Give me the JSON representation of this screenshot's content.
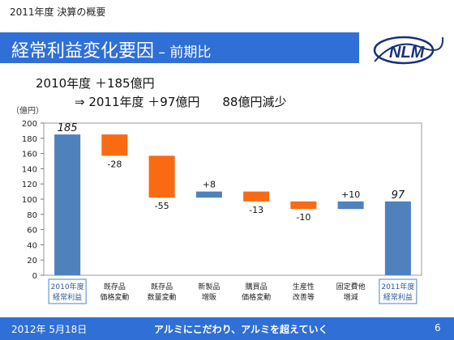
{
  "header": {
    "caption": "2011年度 決算の概要",
    "title": "経常利益変化要因",
    "subtitle": " – 前期比"
  },
  "logo": {
    "text": "NLM"
  },
  "summary": {
    "line1": "2010年度 ＋185億円",
    "line2": "⇒ 2011年度 ＋97億円",
    "line2_loss": "88億円減少"
  },
  "chart_data": {
    "type": "bar",
    "subtype": "waterfall",
    "unit_label": "（億円）",
    "ylim": [
      0,
      200
    ],
    "y_ticks": [
      0,
      20,
      40,
      60,
      80,
      100,
      120,
      140,
      160,
      180,
      200
    ],
    "grid": false,
    "categories": [
      [
        "2010年度",
        "経常利益"
      ],
      [
        "既存品",
        "価格変動"
      ],
      [
        "既存品",
        "数量変動"
      ],
      [
        "新製品",
        "増販"
      ],
      [
        "購買品",
        "価格変動"
      ],
      [
        "生産性",
        "改善等"
      ],
      [
        "固定費他",
        "増減"
      ],
      [
        "2011年度",
        "経常利益"
      ]
    ],
    "steps": [
      {
        "kind": "total",
        "value": 185,
        "label": "185"
      },
      {
        "kind": "delta",
        "value": -28,
        "label": "-28"
      },
      {
        "kind": "delta",
        "value": -55,
        "label": "-55"
      },
      {
        "kind": "delta",
        "value": 8,
        "label": "+8"
      },
      {
        "kind": "delta",
        "value": -13,
        "label": "-13"
      },
      {
        "kind": "delta",
        "value": -10,
        "label": "-10"
      },
      {
        "kind": "delta",
        "value": 10,
        "label": "+10"
      },
      {
        "kind": "total",
        "value": 97,
        "label": "97"
      }
    ],
    "colors": {
      "total": "#4f81bd",
      "increase": "#4f81bd",
      "decrease": "#f96b13",
      "total_label_box": "#4f81bd"
    }
  },
  "footer": {
    "date": "2012年 5月18日",
    "slogan": "アルミにこだわり、アルミを超えていく",
    "page": "6"
  }
}
